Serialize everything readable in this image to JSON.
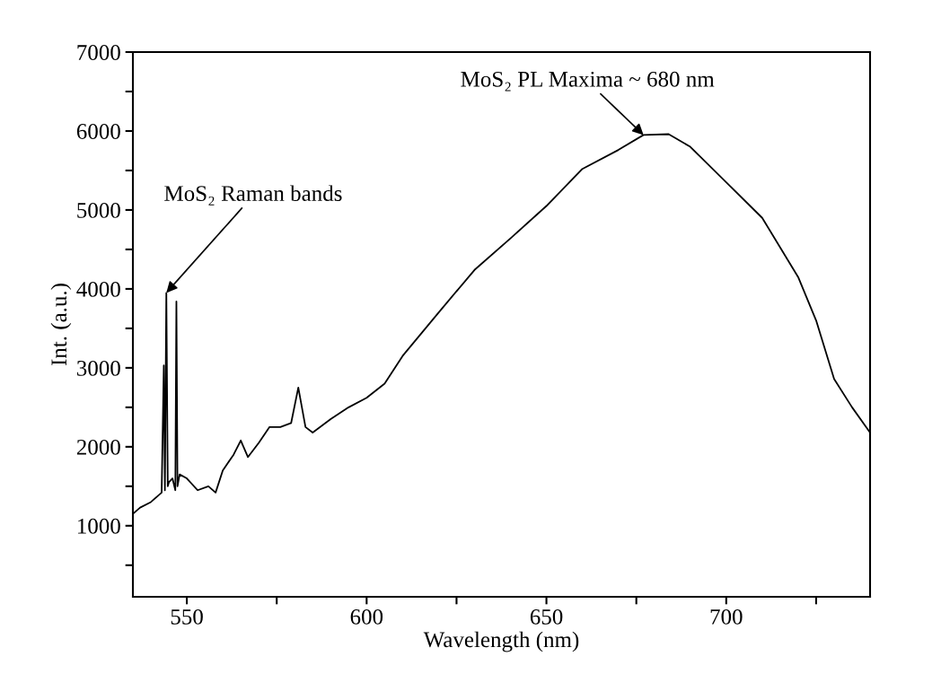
{
  "chart_data": {
    "type": "line",
    "xlabel": "Wavelength (nm)",
    "ylabel": "Int. (a.u.)",
    "xlim": [
      535,
      740
    ],
    "ylim": [
      100,
      7000
    ],
    "xticks": [
      550,
      {
        "value": 575,
        "label": null
      },
      600,
      {
        "value": 625,
        "label": null
      },
      650,
      {
        "value": 675,
        "label": null
      },
      700,
      {
        "value": 725,
        "label": null
      }
    ],
    "yticks": [
      {
        "value": 500,
        "label": null
      },
      1000,
      {
        "value": 1500,
        "label": null
      },
      2000,
      {
        "value": 2500,
        "label": null
      },
      3000,
      {
        "value": 3500,
        "label": null
      },
      4000,
      {
        "value": 4500,
        "label": null
      },
      5000,
      {
        "value": 5500,
        "label": null
      },
      6000,
      {
        "value": 6500,
        "label": null
      },
      7000
    ],
    "grid": false,
    "legend": false,
    "marker": "none",
    "line_style": "solid",
    "series": [
      {
        "color": "#000000",
        "x": [
          535,
          537,
          540,
          543,
          543.6,
          543.9,
          544.3,
          544.7,
          545,
          546,
          546.8,
          547.1,
          547.4,
          548,
          550,
          553,
          556,
          558,
          560,
          563,
          565,
          567,
          570,
          573,
          576,
          579,
          581,
          583,
          585,
          590,
          595,
          600,
          605,
          610,
          620,
          630,
          640,
          650,
          660,
          670,
          677,
          684,
          690,
          700,
          710,
          720,
          725,
          730,
          735,
          740
        ],
        "values": [
          1150,
          1230,
          1300,
          1420,
          3030,
          1450,
          3950,
          1500,
          1550,
          1600,
          1450,
          3840,
          1500,
          1650,
          1600,
          1450,
          1500,
          1420,
          1700,
          1900,
          2080,
          1870,
          2050,
          2250,
          2250,
          2300,
          2750,
          2250,
          2180,
          2350,
          2500,
          2620,
          2800,
          3150,
          3700,
          4240,
          4640,
          5050,
          5520,
          5760,
          5950,
          5960,
          5800,
          5350,
          4900,
          4150,
          3600,
          2860,
          2500,
          2180
        ]
      }
    ],
    "annotations": [
      {
        "text": "MoS₂ Raman bands",
        "x": 544.3,
        "y": 3950
      },
      {
        "text": "MoS₂ PL Maxima ~ 680 nm",
        "x": 677,
        "y": 5950
      }
    ]
  }
}
